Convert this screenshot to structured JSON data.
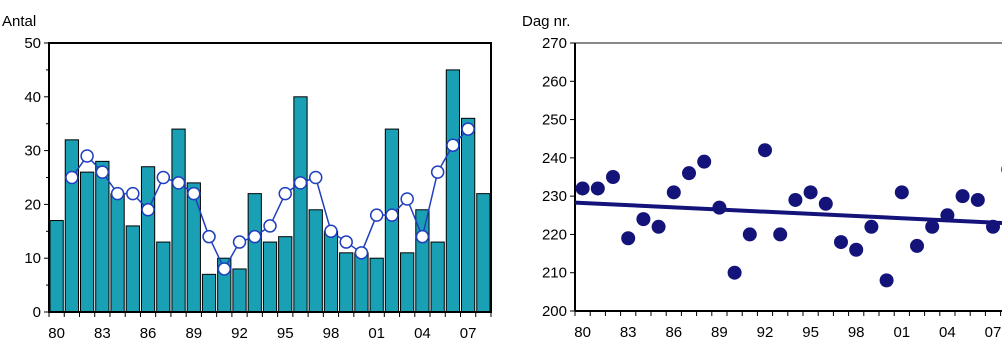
{
  "chart_data": [
    {
      "type": "bar",
      "ylabel": "Antal",
      "ylim": [
        0,
        50
      ],
      "yticks": [
        "0",
        "10",
        "20",
        "30",
        "40",
        "50"
      ],
      "xticklabels": [
        "80",
        "83",
        "86",
        "89",
        "92",
        "95",
        "98",
        "01",
        "04",
        "07"
      ],
      "categories": [
        "80",
        "81",
        "82",
        "83",
        "84",
        "85",
        "86",
        "87",
        "88",
        "89",
        "90",
        "91",
        "92",
        "93",
        "94",
        "95",
        "96",
        "97",
        "98",
        "99",
        "00",
        "01",
        "02",
        "03",
        "04",
        "05",
        "06",
        "07",
        "08"
      ],
      "series": [
        {
          "kind": "bar",
          "color": "#1aa0b4",
          "values": [
            17,
            32,
            26,
            28,
            22,
            16,
            27,
            13,
            34,
            24,
            7,
            10,
            8,
            22,
            13,
            14,
            40,
            19,
            15,
            11,
            11,
            10,
            34,
            11,
            19,
            13,
            45,
            36,
            22
          ]
        },
        {
          "kind": "line",
          "color": "#1f3fbf",
          "marker": "open-circle",
          "values": [
            null,
            25,
            29,
            26,
            22,
            22,
            19,
            25,
            24,
            22,
            14,
            8,
            13,
            14,
            16,
            22,
            24,
            25,
            15,
            13,
            11,
            18,
            18,
            21,
            14,
            26,
            31,
            34,
            null
          ]
        }
      ],
      "grid": false
    },
    {
      "type": "scatter",
      "ylabel": "Dag nr.",
      "ylim": [
        200,
        270
      ],
      "yticks": [
        "200",
        "210",
        "220",
        "230",
        "240",
        "250",
        "260",
        "270"
      ],
      "xticklabels": [
        "80",
        "83",
        "86",
        "89",
        "92",
        "95",
        "98",
        "01",
        "04",
        "07"
      ],
      "x": [
        "80",
        "81",
        "82",
        "83",
        "84",
        "85",
        "86",
        "87",
        "88",
        "89",
        "90",
        "91",
        "92",
        "93",
        "94",
        "95",
        "96",
        "97",
        "98",
        "99",
        "00",
        "01",
        "02",
        "03",
        "04",
        "05",
        "06",
        "07",
        "08"
      ],
      "y": [
        232,
        232,
        235,
        219,
        224,
        222,
        231,
        236,
        239,
        227,
        210,
        220,
        242,
        220,
        229,
        231,
        228,
        218,
        216,
        222,
        208,
        231,
        217,
        222,
        225,
        230,
        229,
        222,
        237
      ],
      "marker_color": "#13137a",
      "trendline": {
        "color": "#13137a",
        "start": 228.3,
        "end": 223.0
      },
      "grid": false
    }
  ]
}
